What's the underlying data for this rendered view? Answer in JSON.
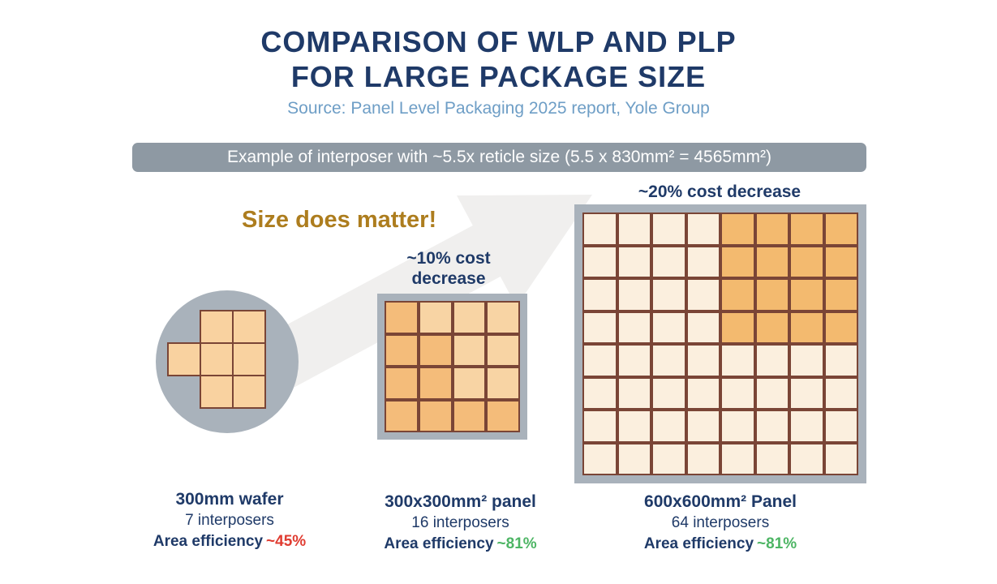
{
  "title": {
    "line1": "COMPARISON OF WLP AND PLP",
    "line2": "FOR LARGE PACKAGE SIZE"
  },
  "source": "Source: Panel Level Packaging 2025 report, Yole Group",
  "banner": {
    "text": "Example of interposer with ~5.5x reticle size (5.5 x 830mm² = 4565mm²)"
  },
  "tagline": "Size does matter!",
  "colors": {
    "navy": "#1F3A68",
    "source_blue": "#6E9EC6",
    "banner_bg": "#8E99A3",
    "gold": "#AD7D1E",
    "red": "#E03C31",
    "green": "#4DB564",
    "frame_gray": "#A9B2BB",
    "die_border": "#7A4536",
    "arrow_gray": "#F0EFEE",
    "wafer_die": "#F9D2A0",
    "p300_dark": "#F4BC7A",
    "p300_light": "#F8D4A4",
    "p600_dark": "#F3BA6F",
    "p600_light": "#FBEFDE"
  },
  "wafer": {
    "label": "300mm wafer",
    "interposers": "7 interposers",
    "efficiency_label": "Area efficiency",
    "efficiency_value": "~45%",
    "efficiency_color": "#E03C31",
    "grid": [
      "011",
      "111",
      "011"
    ]
  },
  "panel300": {
    "cost_lines": [
      "~10% cost",
      "decrease"
    ],
    "label": "300x300mm² panel",
    "interposers": "16 interposers",
    "efficiency_label": "Area efficiency",
    "efficiency_value": "~81%",
    "efficiency_color": "#4DB564",
    "grid": [
      "DLLL",
      "DDLL",
      "DDLL",
      "DDDD"
    ]
  },
  "panel600": {
    "cost_line": "~20% cost decrease",
    "label": "600x600mm² Panel",
    "interposers": "64 interposers",
    "efficiency_label": "Area efficiency",
    "efficiency_value": "~81%",
    "efficiency_color": "#4DB564",
    "grid": [
      "LLLLDDDD",
      "LLLLDDDD",
      "LLLLDDDD",
      "LLLLDDDD",
      "LLLLLLLL",
      "LLLLLLLL",
      "LLLLLLLL",
      "LLLLLLLL"
    ]
  }
}
